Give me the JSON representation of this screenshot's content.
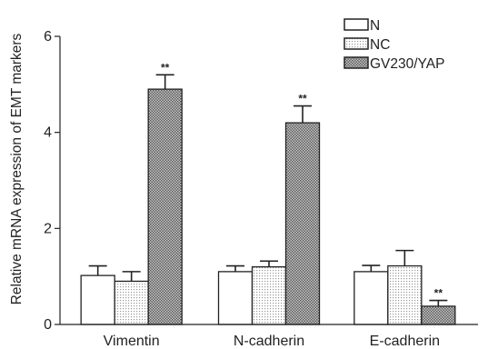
{
  "chart_data": {
    "type": "bar",
    "ylabel": "Relative mRNA expression of EMT markers",
    "ylim": [
      0,
      6
    ],
    "yticks": [
      0,
      2,
      4,
      6
    ],
    "categories": [
      "Vimentin",
      "N-cadherin",
      "E-cadherin"
    ],
    "series": [
      {
        "name": "N",
        "values": [
          1.02,
          1.1,
          1.1
        ],
        "errors": [
          0.2,
          0.12,
          0.13
        ],
        "pattern": "white"
      },
      {
        "name": "NC",
        "values": [
          0.9,
          1.2,
          1.22
        ],
        "errors": [
          0.2,
          0.12,
          0.32
        ],
        "pattern": "dots"
      },
      {
        "name": "GV230/YAP",
        "values": [
          4.9,
          4.2,
          0.38
        ],
        "errors": [
          0.3,
          0.35,
          0.12
        ],
        "pattern": "crosshatch",
        "significance": [
          "**",
          "**",
          "**"
        ]
      }
    ],
    "legend_position": "top-right",
    "grid": false
  }
}
